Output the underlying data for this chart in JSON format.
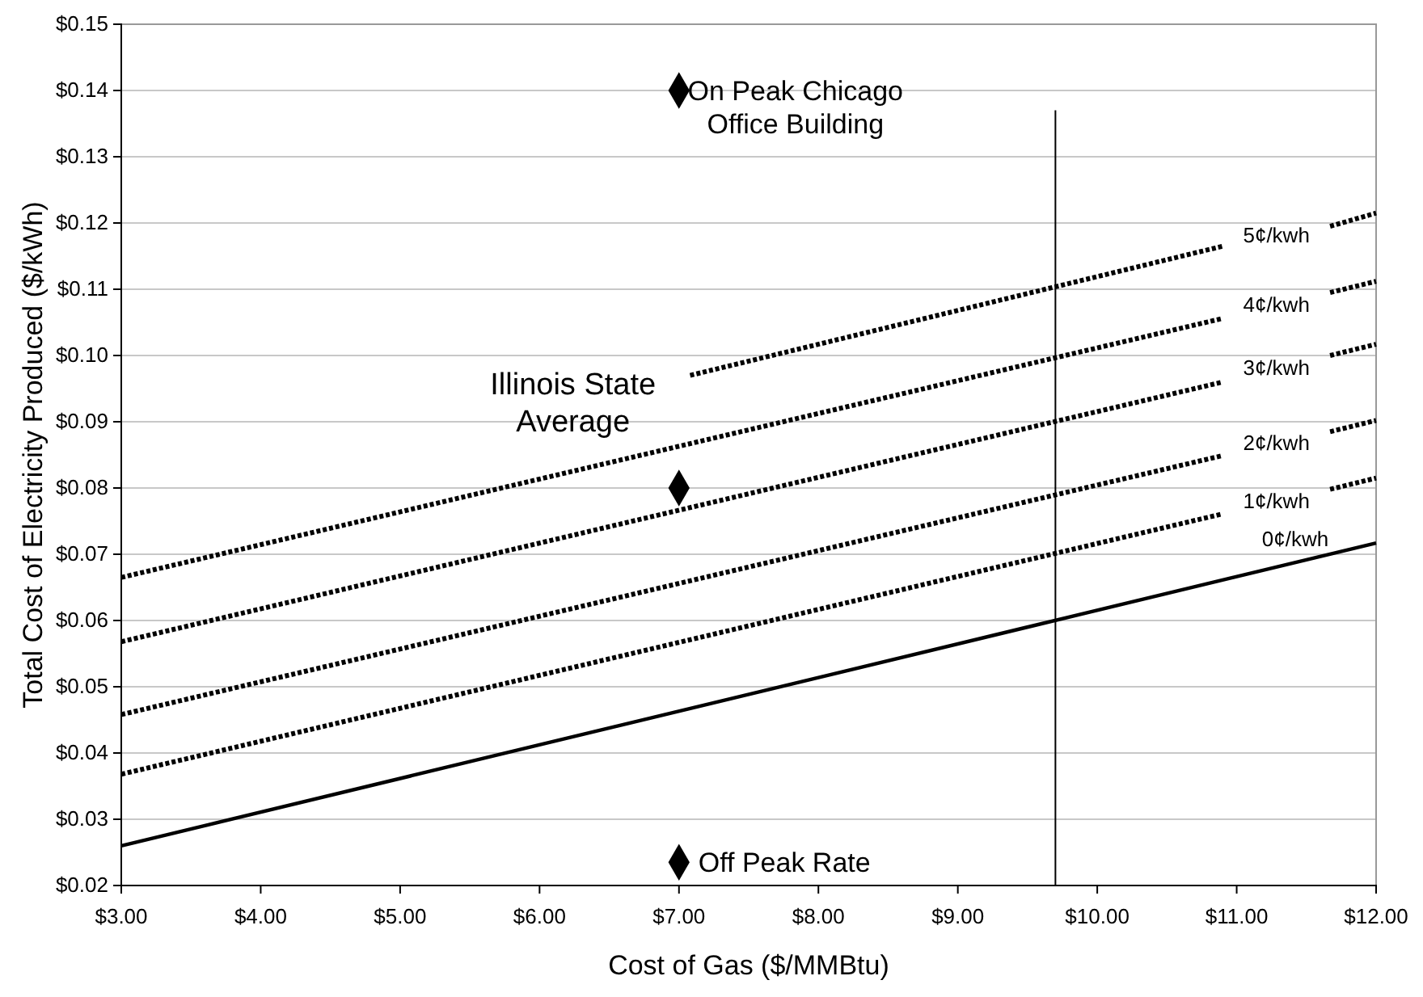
{
  "chart_data": {
    "type": "line",
    "xlabel": "Cost of Gas ($/MMBtu)",
    "ylabel": "Total Cost of Electricity Produced ($/kWh)",
    "xlim": [
      3,
      12
    ],
    "ylim": [
      0.02,
      0.15
    ],
    "xticks": [
      {
        "value": 3,
        "label": "$3.00"
      },
      {
        "value": 4,
        "label": "$4.00"
      },
      {
        "value": 5,
        "label": "$5.00"
      },
      {
        "value": 6,
        "label": "$6.00"
      },
      {
        "value": 7,
        "label": "$7.00"
      },
      {
        "value": 8,
        "label": "$8.00"
      },
      {
        "value": 9,
        "label": "$9.00"
      },
      {
        "value": 10,
        "label": "$10.00"
      },
      {
        "value": 11,
        "label": "$11.00"
      },
      {
        "value": 12,
        "label": "$12.00"
      }
    ],
    "yticks": [
      {
        "value": 0.02,
        "label": "$0.02"
      },
      {
        "value": 0.03,
        "label": "$0.03"
      },
      {
        "value": 0.04,
        "label": "$0.04"
      },
      {
        "value": 0.05,
        "label": "$0.05"
      },
      {
        "value": 0.06,
        "label": "$0.06"
      },
      {
        "value": 0.07,
        "label": "$0.07"
      },
      {
        "value": 0.08,
        "label": "$0.08"
      },
      {
        "value": 0.09,
        "label": "$0.09"
      },
      {
        "value": 0.1,
        "label": "$0.10"
      },
      {
        "value": 0.11,
        "label": "$0.11"
      },
      {
        "value": 0.12,
        "label": "$0.12"
      },
      {
        "value": 0.13,
        "label": "$0.13"
      },
      {
        "value": 0.14,
        "label": "$0.14"
      },
      {
        "value": 0.15,
        "label": "$0.15"
      }
    ],
    "grid": "y",
    "legend": false,
    "marker": "none",
    "series": [
      {
        "name": "0¢/kwh",
        "color": "#000000",
        "line_style": "solid",
        "x": [
          3,
          12
        ],
        "values": [
          0.026,
          0.0717
        ]
      },
      {
        "name": "1¢/kwh",
        "color": "#000000",
        "line_style": "dotted",
        "x": [
          3,
          10.9,
          11.3,
          11.67,
          12
        ],
        "values": [
          0.0368,
          0.0761,
          null,
          0.0798,
          0.0815
        ]
      },
      {
        "name": "2¢/kwh",
        "color": "#000000",
        "line_style": "dotted",
        "x": [
          3,
          10.9,
          11.3,
          11.67,
          12
        ],
        "values": [
          0.0458,
          0.0849,
          null,
          0.0885,
          0.0902
        ]
      },
      {
        "name": "3¢/kwh",
        "color": "#000000",
        "line_style": "dotted",
        "x": [
          3,
          10.9,
          11.3,
          11.67,
          12
        ],
        "values": [
          0.0568,
          0.096,
          null,
          0.1,
          0.1017
        ]
      },
      {
        "name": "4¢/kwh",
        "color": "#000000",
        "line_style": "dotted",
        "x": [
          3,
          10.9,
          11.3,
          11.67,
          12
        ],
        "values": [
          0.0665,
          0.1056,
          null,
          0.1095,
          0.1112
        ]
      },
      {
        "name": "5¢/kwh",
        "color": "#000000",
        "line_style": "dotted",
        "x": [
          7.08,
          10.9,
          11.3,
          11.67,
          12
        ],
        "values": [
          0.097,
          0.1165,
          null,
          0.1195,
          0.1215
        ]
      },
      {
        "type": "scatter",
        "color": "#000000",
        "marker": "diamond",
        "x": [
          7,
          7,
          7
        ],
        "values": [
          0.14,
          0.08,
          0.0235
        ]
      }
    ],
    "ref_lines": [
      {
        "axis": "x",
        "value": 9.7,
        "color": "#000000",
        "line_style": "solid"
      }
    ],
    "annotations": [
      {
        "text": "On Peak Chicago\nOffice Building",
        "x": 7,
        "y": 0.14
      },
      "Illinois State\nAverage",
      {
        "text": "Off Peak Rate",
        "x": 7,
        "y": 0.0235
      }
    ]
  }
}
